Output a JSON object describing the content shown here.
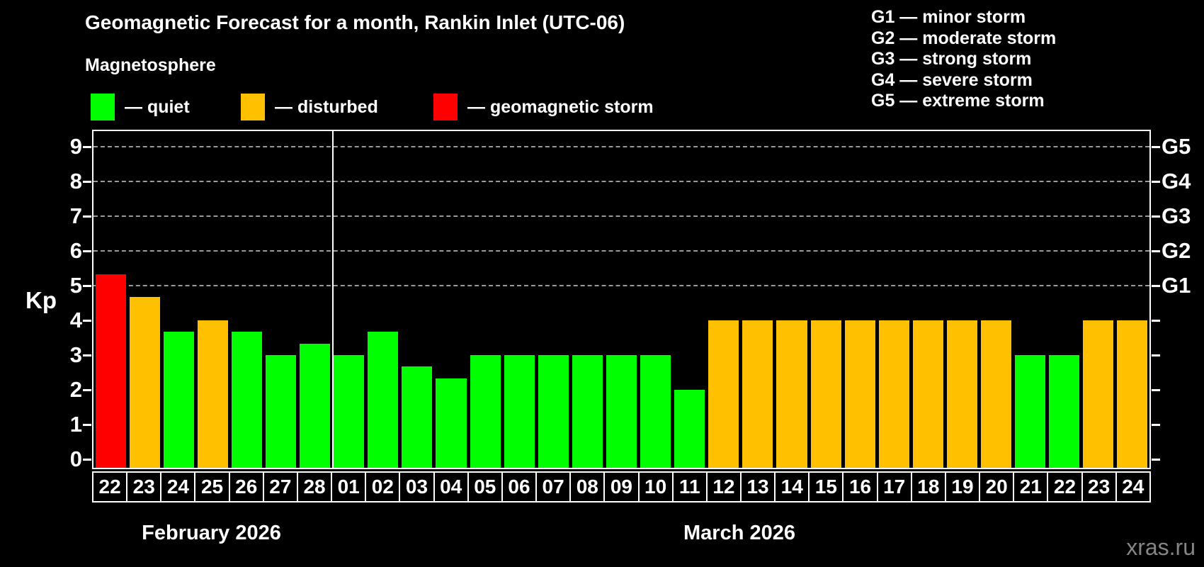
{
  "title": "Geomagnetic Forecast for a month, Rankin Inlet (UTC-06)",
  "subtitle": "Magnetosphere",
  "legend": {
    "items": [
      {
        "status": "quiet",
        "label": "— quiet"
      },
      {
        "status": "disturbed",
        "label": "— disturbed"
      },
      {
        "status": "storm",
        "label": "— geomagnetic storm"
      }
    ]
  },
  "g_legend": [
    "G1 — minor storm",
    "G2 — moderate storm",
    "G3 — strong storm",
    "G4 — severe storm",
    "G5 — extreme storm"
  ],
  "watermark": "xras.ru",
  "chart_data": {
    "type": "bar",
    "title": "Geomagnetic Forecast for a month, Rankin Inlet (UTC-06)",
    "ylabel": "Kp",
    "xlabel": "",
    "ylim": [
      -0.25,
      9.5
    ],
    "yticks": [
      0,
      1,
      2,
      3,
      4,
      5,
      6,
      7,
      8,
      9
    ],
    "gridlines_kp": [
      5,
      6,
      7,
      8,
      9
    ],
    "grid": "dashed horizontal at storm levels",
    "right_axis": [
      {
        "label": "G1",
        "kp": 5
      },
      {
        "label": "G2",
        "kp": 6
      },
      {
        "label": "G3",
        "kp": 7
      },
      {
        "label": "G4",
        "kp": 8
      },
      {
        "label": "G5",
        "kp": 9
      }
    ],
    "status_colors": {
      "quiet": "#00ff00",
      "disturbed": "#ffc000",
      "storm": "#ff0000"
    },
    "months": [
      {
        "label": "February 2026",
        "points": [
          {
            "day": "22",
            "kp": 5.33,
            "status": "storm"
          },
          {
            "day": "23",
            "kp": 4.67,
            "status": "disturbed"
          },
          {
            "day": "24",
            "kp": 3.67,
            "status": "quiet"
          },
          {
            "day": "25",
            "kp": 4.0,
            "status": "disturbed"
          },
          {
            "day": "26",
            "kp": 3.67,
            "status": "quiet"
          },
          {
            "day": "27",
            "kp": 3.0,
            "status": "quiet"
          },
          {
            "day": "28",
            "kp": 3.33,
            "status": "quiet"
          }
        ]
      },
      {
        "label": "March 2026",
        "points": [
          {
            "day": "01",
            "kp": 3.0,
            "status": "quiet"
          },
          {
            "day": "02",
            "kp": 3.67,
            "status": "quiet"
          },
          {
            "day": "03",
            "kp": 2.67,
            "status": "quiet"
          },
          {
            "day": "04",
            "kp": 2.33,
            "status": "quiet"
          },
          {
            "day": "05",
            "kp": 3.0,
            "status": "quiet"
          },
          {
            "day": "06",
            "kp": 3.0,
            "status": "quiet"
          },
          {
            "day": "07",
            "kp": 3.0,
            "status": "quiet"
          },
          {
            "day": "08",
            "kp": 3.0,
            "status": "quiet"
          },
          {
            "day": "09",
            "kp": 3.0,
            "status": "quiet"
          },
          {
            "day": "10",
            "kp": 3.0,
            "status": "quiet"
          },
          {
            "day": "11",
            "kp": 2.0,
            "status": "quiet"
          },
          {
            "day": "12",
            "kp": 4.0,
            "status": "disturbed"
          },
          {
            "day": "13",
            "kp": 4.0,
            "status": "disturbed"
          },
          {
            "day": "14",
            "kp": 4.0,
            "status": "disturbed"
          },
          {
            "day": "15",
            "kp": 4.0,
            "status": "disturbed"
          },
          {
            "day": "16",
            "kp": 4.0,
            "status": "disturbed"
          },
          {
            "day": "17",
            "kp": 4.0,
            "status": "disturbed"
          },
          {
            "day": "18",
            "kp": 4.0,
            "status": "disturbed"
          },
          {
            "day": "19",
            "kp": 4.0,
            "status": "disturbed"
          },
          {
            "day": "20",
            "kp": 4.0,
            "status": "disturbed"
          },
          {
            "day": "21",
            "kp": 3.0,
            "status": "quiet"
          },
          {
            "day": "22",
            "kp": 3.0,
            "status": "quiet"
          },
          {
            "day": "23",
            "kp": 4.0,
            "status": "disturbed"
          },
          {
            "day": "24",
            "kp": 4.0,
            "status": "disturbed"
          }
        ]
      }
    ]
  }
}
